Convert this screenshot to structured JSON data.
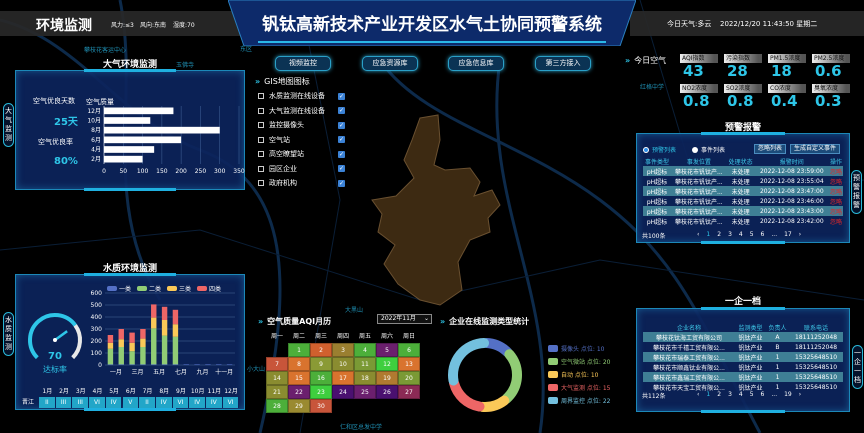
{
  "header": {
    "left_title": "环境监测",
    "wind_power": "风力:≤3",
    "wind_dir": "风向:东南",
    "humidity": "湿度:70",
    "title": "钒钛高新技术产业开发区水气土协同预警系统",
    "weather": "今日天气:多云",
    "datetime": "2022/12/20 11:43:50 星期二"
  },
  "nav": [
    "视频监控",
    "应急资源库",
    "应急信息库",
    "第三方接入"
  ],
  "map_labels": [
    "东区",
    "攀枝花客运中心",
    "仁和区总发中学",
    "玉佛寺",
    "大黑山",
    "红格中学",
    "小大山"
  ],
  "colors": {
    "accent": "#2ec6e8",
    "panel": "#0c245c",
    "region": "#3d2a12"
  },
  "gis": {
    "title": "GIS地图图标",
    "items": [
      "水质监测在线设备",
      "大气监测在线设备",
      "监控摄像头",
      "空气站",
      "高空瞭望站",
      "园区企业",
      "政府机构"
    ]
  },
  "air_panel": {
    "title": "大气环境监测",
    "side_tab": "大气监测",
    "good_days_label": "空气优良天数",
    "good_days": "25天",
    "good_rate_label": "空气优良率",
    "good_rate": "80%"
  },
  "air_chart": {
    "type": "bar",
    "orientation": "horizontal",
    "title": "空气质量",
    "categories": [
      "2月",
      "4月",
      "6月",
      "8月",
      "10月",
      "12月"
    ],
    "values": [
      100,
      130,
      200,
      300,
      120,
      180
    ],
    "xlim": [
      0,
      350
    ],
    "xticks": [
      0,
      50,
      100,
      150,
      200,
      250,
      300,
      350
    ],
    "color": "#ffffff"
  },
  "water_panel": {
    "title": "水质环境监测",
    "side_tab": "水质监测",
    "gauge_value": 70,
    "gauge_max": 100,
    "gauge_label": "达标率",
    "river": "晋江",
    "months": [
      "1月",
      "2月",
      "3月",
      "4月",
      "5月",
      "6月",
      "7月",
      "8月",
      "9月",
      "10月",
      "11月",
      "12月"
    ],
    "grades": [
      "II",
      "III",
      "III",
      "VI",
      "IV",
      "V",
      "II",
      "IV",
      "VI",
      "IV",
      "IV",
      "VI"
    ]
  },
  "chart_data": {
    "type": "bar",
    "stacked": true,
    "categories": [
      "一月",
      "二月",
      "三月",
      "四月",
      "五月",
      "六月",
      "七月",
      "八月",
      "九月",
      "十月",
      "十一月",
      "十二月"
    ],
    "xtick_labels": [
      "一月",
      "",
      "三月",
      "",
      "五月",
      "",
      "七月",
      "",
      "九月",
      "",
      "十一月",
      ""
    ],
    "ylim": [
      0,
      600
    ],
    "yticks": [
      0,
      100,
      200,
      300,
      400,
      500,
      600
    ],
    "legend": "top",
    "series": [
      {
        "name": "一类",
        "color": "#5470c6",
        "values": [
          5,
          5,
          5,
          5,
          5,
          5,
          5,
          5,
          5,
          5,
          5,
          5
        ]
      },
      {
        "name": "二类",
        "color": "#91cc75",
        "values": [
          130,
          145,
          110,
          145,
          300,
          240,
          230,
          0,
          0,
          0,
          0,
          0
        ]
      },
      {
        "name": "三类",
        "color": "#fac858",
        "values": [
          50,
          65,
          70,
          70,
          90,
          130,
          105,
          0,
          0,
          0,
          0,
          0
        ]
      },
      {
        "name": "四类",
        "color": "#ee6666",
        "values": [
          65,
          85,
          85,
          80,
          110,
          110,
          120,
          0,
          0,
          0,
          0,
          0
        ]
      }
    ]
  },
  "calendar": {
    "title": "空气质量AQI月历",
    "select": "2022年11月",
    "weekdays": [
      "周一",
      "周二",
      "周三",
      "周四",
      "周五",
      "周六",
      "周日"
    ],
    "start_col": 1,
    "days": [
      {
        "d": "1",
        "c": "#4caf3a"
      },
      {
        "d": "2",
        "c": "#d0602e"
      },
      {
        "d": "3",
        "c": "#9a7f30"
      },
      {
        "d": "4",
        "c": "#4caf3a"
      },
      {
        "d": "5",
        "c": "#6b1f6e"
      },
      {
        "d": "6",
        "c": "#4caf3a"
      },
      {
        "d": "7",
        "c": "#c8553a"
      },
      {
        "d": "8",
        "c": "#d9732e"
      },
      {
        "d": "9",
        "c": "#8a9a35"
      },
      {
        "d": "10",
        "c": "#8a8c30"
      },
      {
        "d": "11",
        "c": "#7a9a35"
      },
      {
        "d": "12",
        "c": "#3ecf3e"
      },
      {
        "d": "13",
        "c": "#d9732e"
      },
      {
        "d": "14",
        "c": "#8a8c30"
      },
      {
        "d": "15",
        "c": "#d9732e"
      },
      {
        "d": "16",
        "c": "#4caf3a"
      },
      {
        "d": "17",
        "c": "#d9732e"
      },
      {
        "d": "18",
        "c": "#8a8c30"
      },
      {
        "d": "19",
        "c": "#b07a30"
      },
      {
        "d": "20",
        "c": "#7a9a35"
      },
      {
        "d": "21",
        "c": "#8a8c30"
      },
      {
        "d": "22",
        "c": "#6b1f6e"
      },
      {
        "d": "23",
        "c": "#3ecf3e"
      },
      {
        "d": "24",
        "c": "#4a1070"
      },
      {
        "d": "25",
        "c": "#6b1f6e"
      },
      {
        "d": "26",
        "c": "#4a1070"
      },
      {
        "d": "27",
        "c": "#8b2a55"
      },
      {
        "d": "28",
        "c": "#4caf3a"
      },
      {
        "d": "29",
        "c": "#9a8a30"
      },
      {
        "d": "30",
        "c": "#c8553a"
      }
    ]
  },
  "donut": {
    "title": "企业在线监测类型统计",
    "items": [
      {
        "label": "摄像头 点位: 10",
        "value": 10,
        "color": "#5470c6"
      },
      {
        "label": "空气微站 点位: 20",
        "value": 20,
        "color": "#91cc75"
      },
      {
        "label": "自动 点位: 10",
        "value": 10,
        "color": "#fac858"
      },
      {
        "label": "大气监测 点位: 15",
        "value": 15,
        "color": "#ee6666"
      },
      {
        "label": "周界监控 点位: 22",
        "value": 22,
        "color": "#73c0de"
      }
    ]
  },
  "today_air": {
    "title": "今日空气",
    "items": [
      {
        "label": "AQI指数",
        "value": "43"
      },
      {
        "label": "污染指数",
        "value": "28"
      },
      {
        "label": "PM1.5浓度",
        "value": "18"
      },
      {
        "label": "PM2.5浓度",
        "value": "0.6"
      },
      {
        "label": "NO2浓度",
        "value": "0.8"
      },
      {
        "label": "SO2浓度",
        "value": "0.8"
      },
      {
        "label": "CO浓度",
        "value": "0.4"
      },
      {
        "label": "臭氧浓度",
        "value": "0.3"
      }
    ]
  },
  "alerts": {
    "title": "预警报警",
    "side_tab": "预警报警",
    "radio1": "预警列表",
    "radio2": "事件列表",
    "btn_ignore": "忽略列表",
    "btn_create": "生成自定义事件",
    "columns": [
      "事件类型",
      "事发位置",
      "处理状态",
      "报警时间",
      "操作"
    ],
    "rows": [
      [
        "pH超标",
        "攀枝花市钒钛产...",
        "未处理",
        "2022-12-08 23:59:00",
        "忽略"
      ],
      [
        "pH超标",
        "攀枝花市钒钛产...",
        "未处理",
        "2022-12-08 23:55:04",
        "忽略"
      ],
      [
        "pH超标",
        "攀枝花市钒钛产...",
        "未处理",
        "2022-12-08 23:47:00",
        "忽略"
      ],
      [
        "pH超标",
        "攀枝花市钒钛产...",
        "未处理",
        "2022-12-08 23:46:00",
        "忽略"
      ],
      [
        "pH超标",
        "攀枝花市钒钛产...",
        "未处理",
        "2022-12-08 23:43:00",
        "忽略"
      ],
      [
        "pH超标",
        "攀枝花市钒钛产...",
        "未处理",
        "2022-12-08 23:42:00",
        "忽略"
      ]
    ],
    "total": "共100条",
    "pages": [
      "1",
      "2",
      "3",
      "4",
      "5",
      "6",
      "...",
      "17"
    ]
  },
  "enterprise": {
    "title": "一企一档",
    "side_tab": "一企一档",
    "columns": [
      "企业名称",
      "监测类型",
      "负责人",
      "联系电话"
    ],
    "rows": [
      [
        "攀枝花钛海工贸有限公司",
        "钒钛产业",
        "A",
        "18111252048"
      ],
      [
        "攀枝花市千禧工贸有限公...",
        "钒钛产业",
        "B",
        "18111252048"
      ],
      [
        "攀枝花市瑞泰工贸有限公...",
        "钒钛产业",
        "1",
        "15325648510"
      ],
      [
        "攀枝花市顺鑫钛业有限公...",
        "钒钛产业",
        "1",
        "15325648510"
      ],
      [
        "攀枝花市鑫瑞工贸有限公...",
        "钒钛产业",
        "1",
        "15325648510"
      ],
      [
        "攀枝花市天宝工贸有限公...",
        "钒钛产业",
        "1",
        "15325648510"
      ]
    ],
    "total": "共112条",
    "pages": [
      "1",
      "2",
      "3",
      "4",
      "5",
      "6",
      "...",
      "19"
    ]
  }
}
